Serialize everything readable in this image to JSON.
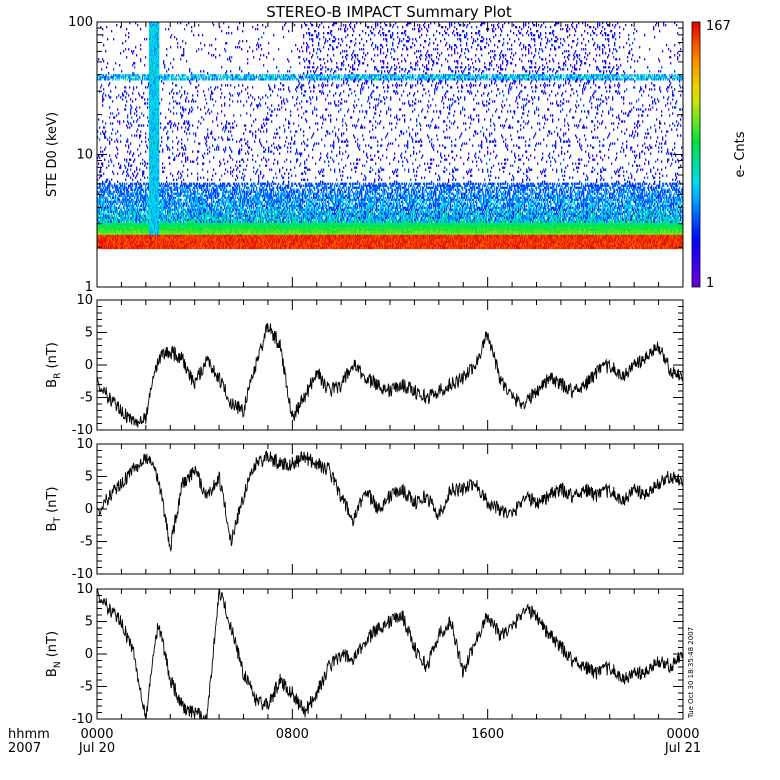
{
  "figure": {
    "title": "STEREO-B IMPACT Summary Plot",
    "timestamp_text": "Tue Oct 30 18:35:48 2007",
    "time_axis": {
      "row1_left": "hhmm",
      "row2_left": "2007",
      "ticks": [
        {
          "hour": 0,
          "label": "0000",
          "sublabel": "Jul 20"
        },
        {
          "hour": 8,
          "label": "0800",
          "sublabel": ""
        },
        {
          "hour": 16,
          "label": "1600",
          "sublabel": ""
        },
        {
          "hour": 24,
          "label": "0000",
          "sublabel": "Jul 21"
        }
      ]
    }
  },
  "chart_data": [
    {
      "type": "heatmap",
      "title": "STE D0 spectrogram",
      "ylabel": "STE D0 (keV)",
      "yscale": "log",
      "ylim": [
        1,
        100
      ],
      "yticks": [
        "1",
        "10",
        "100"
      ],
      "xlim_hours": [
        0,
        24
      ],
      "colorbar": {
        "label": "e- Cnts",
        "min": "1",
        "max": "167",
        "colormap": "rainbow"
      },
      "bright_band_keV": [
        2.0,
        2.4
      ],
      "persistent_line_keV": 38,
      "burst_hour": 2.3
    },
    {
      "type": "line",
      "ylabel_main": "B",
      "ylabel_sub": "R",
      "ylabel_unit": " (nT)",
      "ylim": [
        -10,
        10
      ],
      "yticks": [
        "-10",
        "-5",
        "0",
        "5",
        "10"
      ],
      "x_hours": [
        0,
        0.5,
        1,
        1.5,
        2,
        2.5,
        3,
        3.5,
        4,
        4.5,
        5,
        5.5,
        6,
        6.5,
        7,
        7.5,
        8,
        8.5,
        9,
        9.5,
        10,
        10.5,
        11,
        11.5,
        12,
        12.5,
        13,
        13.5,
        14,
        14.5,
        15,
        15.5,
        16,
        16.5,
        17,
        17.5,
        18,
        18.5,
        19,
        19.5,
        20,
        20.5,
        21,
        21.5,
        22,
        22.5,
        23,
        23.5,
        24
      ],
      "values": [
        -3,
        -5,
        -7,
        -9,
        -8,
        1,
        2,
        1,
        -3,
        1,
        -2,
        -6,
        -7,
        0,
        6,
        3,
        -8,
        -5,
        -1,
        -4,
        -3,
        0,
        -2,
        -3,
        -4,
        -3,
        -4,
        -5,
        -4,
        -3,
        -2,
        0,
        5,
        -2,
        -5,
        -6,
        -4,
        -2,
        -3,
        -4,
        -3,
        -1,
        0,
        -2,
        0,
        1,
        3,
        -1,
        -2
      ]
    },
    {
      "type": "line",
      "ylabel_main": "B",
      "ylabel_sub": "T",
      "ylabel_unit": " (nT)",
      "ylim": [
        -10,
        10
      ],
      "yticks": [
        "-10",
        "-5",
        "0",
        "5",
        "10"
      ],
      "x_hours": [
        0,
        0.5,
        1,
        1.5,
        2,
        2.5,
        3,
        3.5,
        4,
        4.5,
        5,
        5.5,
        6,
        6.5,
        7,
        7.5,
        8,
        8.5,
        9,
        9.5,
        10,
        10.5,
        11,
        11.5,
        12,
        12.5,
        13,
        13.5,
        14,
        14.5,
        15,
        15.5,
        16,
        16.5,
        17,
        17.5,
        18,
        18.5,
        19,
        19.5,
        20,
        20.5,
        21,
        21.5,
        22,
        22.5,
        23,
        23.5,
        24
      ],
      "values": [
        -1,
        2,
        4,
        6,
        8,
        5,
        -6,
        4,
        6,
        2,
        5,
        -5,
        2,
        7,
        8,
        7,
        7,
        8,
        7,
        6,
        2,
        -2,
        3,
        0,
        2,
        3,
        1,
        2,
        -1,
        3,
        3,
        4,
        1,
        0,
        -1,
        2,
        1,
        2,
        3,
        2,
        3,
        2,
        3,
        1,
        3,
        2,
        4,
        5,
        4
      ]
    },
    {
      "type": "line",
      "ylabel_main": "B",
      "ylabel_sub": "N",
      "ylabel_unit": " (nT)",
      "ylim": [
        -10,
        10
      ],
      "yticks": [
        "-10",
        "-5",
        "0",
        "5",
        "10"
      ],
      "x_hours": [
        0,
        0.5,
        1,
        1.5,
        2,
        2.5,
        3,
        3.5,
        4,
        4.5,
        5,
        5.5,
        6,
        6.5,
        7,
        7.5,
        8,
        8.5,
        9,
        9.5,
        10,
        10.5,
        11,
        11.5,
        12,
        12.5,
        13,
        13.5,
        14,
        14.5,
        15,
        15.5,
        16,
        16.5,
        17,
        17.5,
        18,
        18.5,
        19,
        19.5,
        20,
        20.5,
        21,
        21.5,
        22,
        22.5,
        23,
        23.5,
        24
      ],
      "values": [
        9,
        7,
        5,
        0,
        -10,
        5,
        -4,
        -8,
        -9,
        -10,
        10,
        4,
        -3,
        -7,
        -8,
        -4,
        -6,
        -9,
        -6,
        -2,
        0,
        -1,
        2,
        4,
        5,
        6,
        1,
        -2,
        3,
        5,
        -3,
        2,
        6,
        3,
        4,
        7,
        6,
        3,
        1,
        -1,
        -2,
        -3,
        -2,
        -4,
        -3,
        -3,
        -1,
        -2,
        0
      ]
    }
  ]
}
